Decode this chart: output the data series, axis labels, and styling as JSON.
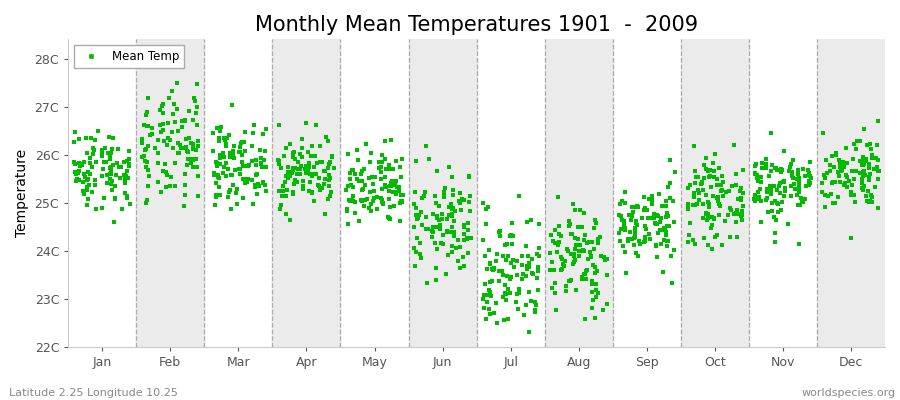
{
  "title": "Monthly Mean Temperatures 1901  -  2009",
  "ylabel": "Temperature",
  "xlabel_subtitle": "Latitude 2.25 Longitude 10.25",
  "watermark": "worldspecies.org",
  "months": [
    "Jan",
    "Feb",
    "Mar",
    "Apr",
    "May",
    "Jun",
    "Jul",
    "Aug",
    "Sep",
    "Oct",
    "Nov",
    "Dec"
  ],
  "month_positions": [
    1,
    2,
    3,
    4,
    5,
    6,
    7,
    8,
    9,
    10,
    11,
    12
  ],
  "ylim": [
    22.0,
    28.4
  ],
  "yticks": [
    22,
    23,
    24,
    25,
    26,
    27,
    28
  ],
  "ytick_labels": [
    "22C",
    "23C",
    "24C",
    "25C",
    "26C",
    "27C",
    "28C"
  ],
  "dot_color": "#00BB00",
  "dot_size": 6,
  "background_color": "#FFFFFF",
  "band_color": "#EBEBEB",
  "legend_label": "Mean Temp",
  "seed": 42,
  "n_years": 109,
  "monthly_means": [
    25.7,
    26.1,
    25.8,
    25.65,
    25.25,
    24.55,
    23.55,
    23.85,
    24.55,
    25.05,
    25.35,
    25.65
  ],
  "monthly_stds": [
    0.42,
    0.58,
    0.4,
    0.38,
    0.42,
    0.55,
    0.62,
    0.55,
    0.42,
    0.42,
    0.4,
    0.4
  ],
  "title_fontsize": 15,
  "axis_label_fontsize": 10,
  "tick_fontsize": 9,
  "legend_fontsize": 8.5,
  "subtitle_fontsize": 8
}
